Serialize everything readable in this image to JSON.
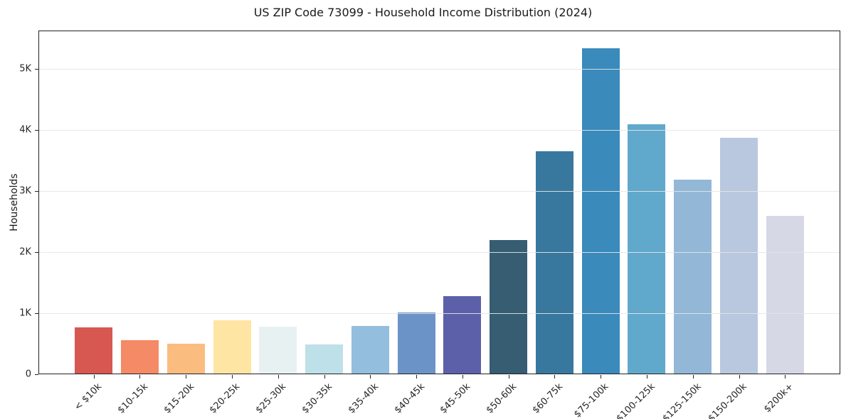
{
  "chart_data": {
    "type": "bar",
    "title": "US ZIP Code 73099 - Household Income Distribution (2024)",
    "xlabel": "",
    "ylabel": "Households",
    "categories": [
      "< $10k",
      "$10-15k",
      "$15-20k",
      "$20-25k",
      "$25-30k",
      "$30-35k",
      "$35-40k",
      "$40-45k",
      "$45-50k",
      "$50-60k",
      "$60-75k",
      "$75-100k",
      "$100-125k",
      "$125-150k",
      "$150-200k",
      "$200k+"
    ],
    "values": [
      765,
      560,
      505,
      890,
      785,
      485,
      795,
      1015,
      1275,
      2200,
      3655,
      5340,
      4090,
      3190,
      3870,
      2595
    ],
    "bar_colors": [
      "#d65850",
      "#f48a66",
      "#fbbc80",
      "#fee5a3",
      "#e7f1f2",
      "#bee0e8",
      "#93bedd",
      "#6c93c8",
      "#5c60a9",
      "#365d72",
      "#38789f",
      "#3a8abc",
      "#60a8cc",
      "#93b7d7",
      "#b9c8de",
      "#d6d8e6"
    ],
    "ylim": [
      0,
      5630
    ],
    "yticks": [
      {
        "value": 0,
        "label": "0"
      },
      {
        "value": 1000,
        "label": "1K"
      },
      {
        "value": 2000,
        "label": "2K"
      },
      {
        "value": 3000,
        "label": "3K"
      },
      {
        "value": 4000,
        "label": "4K"
      },
      {
        "value": 5000,
        "label": "5K"
      }
    ],
    "grid": "horizontal-only",
    "legend": "none",
    "colors": {
      "background": "#ffffff",
      "gridline": "#e7e7e7",
      "spine": "#222222",
      "text": "#1a1a1a"
    }
  }
}
